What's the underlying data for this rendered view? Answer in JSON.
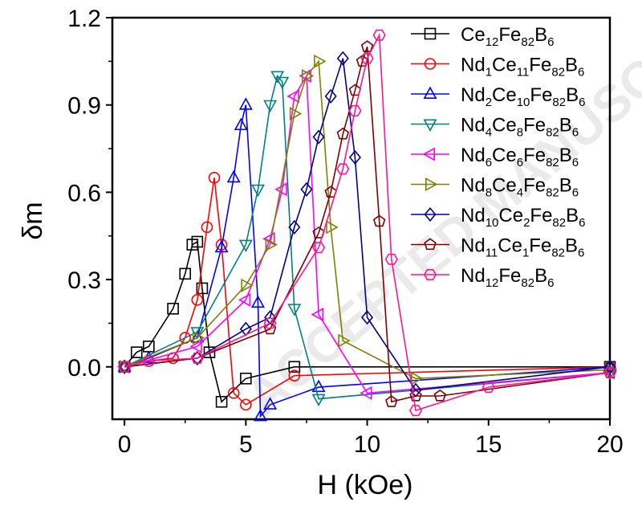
{
  "watermark": "ACCEPTED MANUSCRIPT",
  "chart_data": {
    "type": "line",
    "title": "",
    "xlabel": "H (kOe)",
    "ylabel": "δm",
    "xlim": [
      -0.5,
      20
    ],
    "ylim": [
      -0.18,
      1.2
    ],
    "xticks": [
      0,
      5,
      10,
      15,
      20
    ],
    "yticks": [
      0.0,
      0.3,
      0.6,
      0.9,
      1.2
    ],
    "ytick_labels": [
      "0.0",
      "0.3",
      "0.6",
      "0.9",
      "1.2"
    ],
    "grid": false,
    "legend_position": "top-right",
    "series": [
      {
        "name": "Ce12Fe82B6",
        "label_parts": [
          [
            "Ce",
            ""
          ],
          [
            "12",
            "sub"
          ],
          [
            "Fe",
            ""
          ],
          [
            "82",
            "sub"
          ],
          [
            "B",
            ""
          ],
          [
            "6",
            "sub"
          ]
        ],
        "color": "#000000",
        "marker": "square",
        "x": [
          0,
          0.5,
          1,
          2,
          2.5,
          2.8,
          3.0,
          3.2,
          3.5,
          4.0,
          5.0,
          7.0,
          20
        ],
        "y": [
          0.0,
          0.05,
          0.07,
          0.2,
          0.32,
          0.42,
          0.43,
          0.27,
          0.05,
          -0.12,
          -0.04,
          0.0,
          0.0
        ]
      },
      {
        "name": "Nd1Ce11Fe82B6",
        "label_parts": [
          [
            "Nd",
            ""
          ],
          [
            "1",
            "sub"
          ],
          [
            "Ce",
            ""
          ],
          [
            "11",
            "sub"
          ],
          [
            "Fe",
            ""
          ],
          [
            "82",
            "sub"
          ],
          [
            "B",
            ""
          ],
          [
            "6",
            "sub"
          ]
        ],
        "color": "#ff0000",
        "marker": "circle",
        "x": [
          0,
          1,
          2,
          2.5,
          3.0,
          3.4,
          3.7,
          4.0,
          4.5,
          5.0,
          7.0,
          20
        ],
        "y": [
          0.0,
          0.02,
          0.03,
          0.1,
          0.23,
          0.48,
          0.65,
          0.42,
          -0.09,
          -0.13,
          -0.03,
          0.0
        ]
      },
      {
        "name": "Nd2Ce10Fe82B6",
        "label_parts": [
          [
            "Nd",
            ""
          ],
          [
            "2",
            "sub"
          ],
          [
            "Ce",
            ""
          ],
          [
            "10",
            "sub"
          ],
          [
            "Fe",
            ""
          ],
          [
            "82",
            "sub"
          ],
          [
            "B",
            ""
          ],
          [
            "6",
            "sub"
          ]
        ],
        "color": "#0000ff",
        "marker": "triangle-up",
        "x": [
          0,
          1,
          3.0,
          4.0,
          4.5,
          4.8,
          5.0,
          5.5,
          5.6,
          6.0,
          8.0,
          20
        ],
        "y": [
          0.0,
          0.03,
          0.1,
          0.41,
          0.65,
          0.83,
          0.9,
          0.22,
          -0.17,
          -0.13,
          -0.07,
          0.0
        ]
      },
      {
        "name": "Nd4Ce8Fe82B6",
        "label_parts": [
          [
            "Nd",
            ""
          ],
          [
            "4",
            "sub"
          ],
          [
            "Ce",
            ""
          ],
          [
            "8",
            "sub"
          ],
          [
            "Fe",
            ""
          ],
          [
            "82",
            "sub"
          ],
          [
            "B",
            ""
          ],
          [
            "6",
            "sub"
          ]
        ],
        "color": "#008080",
        "marker": "triangle-down",
        "x": [
          0,
          3.0,
          5.0,
          5.5,
          6.0,
          6.3,
          6.5,
          7.0,
          8.0,
          20
        ],
        "y": [
          0.0,
          0.12,
          0.42,
          0.61,
          0.9,
          1.0,
          0.98,
          0.2,
          -0.11,
          -0.02
        ]
      },
      {
        "name": "Nd6Ce6Fe82B6",
        "label_parts": [
          [
            "Nd",
            ""
          ],
          [
            "6",
            "sub"
          ],
          [
            "Ce",
            ""
          ],
          [
            "6",
            "sub"
          ],
          [
            "Fe",
            ""
          ],
          [
            "82",
            "sub"
          ],
          [
            "B",
            ""
          ],
          [
            "6",
            "sub"
          ]
        ],
        "color": "#ff00ff",
        "marker": "triangle-left",
        "x": [
          0,
          3.0,
          5.0,
          6.0,
          6.5,
          7.0,
          7.5,
          8.0,
          10.0,
          20
        ],
        "y": [
          0.0,
          0.07,
          0.23,
          0.44,
          0.61,
          0.93,
          1.0,
          0.18,
          -0.09,
          -0.02
        ]
      },
      {
        "name": "Nd8Ce4Fe82B6",
        "label_parts": [
          [
            "Nd",
            ""
          ],
          [
            "8",
            "sub"
          ],
          [
            "Ce",
            ""
          ],
          [
            "4",
            "sub"
          ],
          [
            "Fe",
            ""
          ],
          [
            "82",
            "sub"
          ],
          [
            "B",
            ""
          ],
          [
            "6",
            "sub"
          ]
        ],
        "color": "#808000",
        "marker": "triangle-right",
        "x": [
          0,
          3.0,
          5.0,
          6.0,
          7.0,
          7.5,
          8.0,
          8.5,
          9.0,
          12.0,
          20
        ],
        "y": [
          0.0,
          0.1,
          0.28,
          0.42,
          0.87,
          1.0,
          1.05,
          0.48,
          0.09,
          -0.04,
          -0.01
        ]
      },
      {
        "name": "Nd10Ce2Fe82B6",
        "label_parts": [
          [
            "Nd",
            ""
          ],
          [
            "10",
            "sub"
          ],
          [
            "Ce",
            ""
          ],
          [
            "2",
            "sub"
          ],
          [
            "Fe",
            ""
          ],
          [
            "82",
            "sub"
          ],
          [
            "B",
            ""
          ],
          [
            "6",
            "sub"
          ]
        ],
        "color": "#00008b",
        "marker": "diamond",
        "x": [
          0,
          3.0,
          5.0,
          6.0,
          7.0,
          7.5,
          8.0,
          8.5,
          9.0,
          9.5,
          10.0,
          12.0,
          20
        ],
        "y": [
          0.0,
          0.03,
          0.13,
          0.17,
          0.48,
          0.61,
          0.79,
          0.93,
          1.06,
          0.72,
          0.17,
          -0.08,
          0.0
        ]
      },
      {
        "name": "Nd11Ce1Fe82B6",
        "label_parts": [
          [
            "Nd",
            ""
          ],
          [
            "11",
            "sub"
          ],
          [
            "Ce",
            ""
          ],
          [
            "1",
            "sub"
          ],
          [
            "Fe",
            ""
          ],
          [
            "82",
            "sub"
          ],
          [
            "B",
            ""
          ],
          [
            "6",
            "sub"
          ]
        ],
        "color": "#800000",
        "marker": "pentagon",
        "x": [
          0,
          3.0,
          6.0,
          8.0,
          8.5,
          9.0,
          9.5,
          9.8,
          10.0,
          10.5,
          11.0,
          12.0,
          13.0,
          20
        ],
        "y": [
          0.0,
          0.03,
          0.13,
          0.46,
          0.6,
          0.8,
          0.95,
          1.05,
          1.1,
          0.5,
          -0.12,
          -0.1,
          -0.1,
          -0.02
        ]
      },
      {
        "name": "Nd12Fe82B6",
        "label_parts": [
          [
            "Nd",
            ""
          ],
          [
            "12",
            "sub"
          ],
          [
            "Fe",
            ""
          ],
          [
            "82",
            "sub"
          ],
          [
            "B",
            ""
          ],
          [
            "6",
            "sub"
          ]
        ],
        "color": "#ff1493",
        "marker": "hexagon",
        "x": [
          0,
          1,
          3.0,
          6.0,
          8.0,
          9.0,
          9.5,
          10.0,
          10.5,
          11.0,
          12.0,
          15.0,
          20
        ],
        "y": [
          0.0,
          0.02,
          0.03,
          0.15,
          0.41,
          0.68,
          0.88,
          1.06,
          1.14,
          0.37,
          -0.15,
          -0.07,
          -0.02
        ]
      }
    ]
  }
}
